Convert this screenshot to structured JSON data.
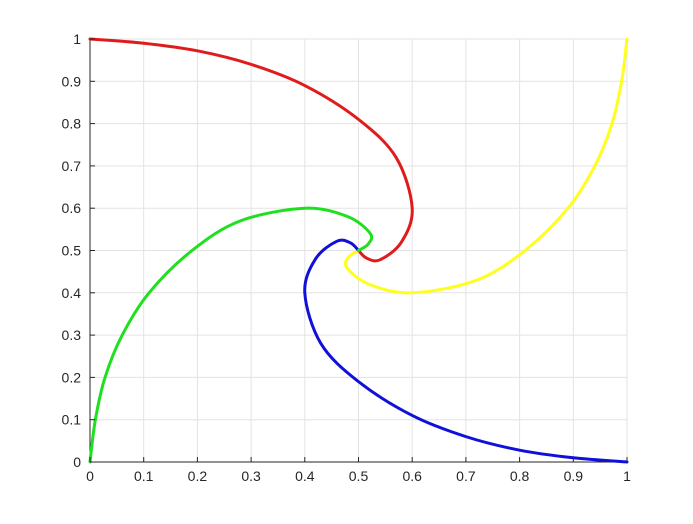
{
  "chart_data": {
    "type": "line",
    "title": "",
    "xlabel": "",
    "ylabel": "",
    "xlim": [
      0,
      1
    ],
    "ylim": [
      0,
      1
    ],
    "grid": true,
    "legend": "none",
    "xticks": [
      "0",
      "0.1",
      "0.2",
      "0.3",
      "0.4",
      "0.5",
      "0.6",
      "0.7",
      "0.8",
      "0.9",
      "1"
    ],
    "yticks": [
      "0",
      "0.1",
      "0.2",
      "0.3",
      "0.4",
      "0.5",
      "0.6",
      "0.7",
      "0.8",
      "0.9",
      "1"
    ],
    "series": [
      {
        "color": "#e01b1b",
        "points": [
          [
            0,
            1
          ],
          [
            0.1,
            0.99
          ],
          [
            0.2,
            0.972
          ],
          [
            0.3,
            0.94
          ],
          [
            0.4,
            0.89
          ],
          [
            0.5,
            0.81
          ],
          [
            0.57,
            0.72
          ],
          [
            0.6,
            0.6
          ],
          [
            0.58,
            0.52
          ],
          [
            0.54,
            0.478
          ],
          [
            0.515,
            0.482
          ],
          [
            0.5,
            0.5
          ]
        ]
      },
      {
        "color": "#ffff1f",
        "points": [
          [
            1,
            1
          ],
          [
            0.99,
            0.9
          ],
          [
            0.972,
            0.8
          ],
          [
            0.94,
            0.7
          ],
          [
            0.89,
            0.6
          ],
          [
            0.81,
            0.5
          ],
          [
            0.72,
            0.43
          ],
          [
            0.6,
            0.4
          ],
          [
            0.52,
            0.42
          ],
          [
            0.478,
            0.46
          ],
          [
            0.482,
            0.485
          ],
          [
            0.5,
            0.5
          ]
        ]
      },
      {
        "color": "#1010d8",
        "points": [
          [
            1,
            0
          ],
          [
            0.9,
            0.01
          ],
          [
            0.8,
            0.028
          ],
          [
            0.7,
            0.06
          ],
          [
            0.6,
            0.11
          ],
          [
            0.5,
            0.19
          ],
          [
            0.43,
            0.28
          ],
          [
            0.4,
            0.4
          ],
          [
            0.42,
            0.48
          ],
          [
            0.46,
            0.522
          ],
          [
            0.485,
            0.518
          ],
          [
            0.5,
            0.5
          ]
        ]
      },
      {
        "color": "#1fe01f",
        "points": [
          [
            0,
            0
          ],
          [
            0.01,
            0.1
          ],
          [
            0.028,
            0.2
          ],
          [
            0.06,
            0.3
          ],
          [
            0.11,
            0.4
          ],
          [
            0.19,
            0.5
          ],
          [
            0.28,
            0.57
          ],
          [
            0.4,
            0.6
          ],
          [
            0.48,
            0.58
          ],
          [
            0.522,
            0.54
          ],
          [
            0.518,
            0.515
          ],
          [
            0.5,
            0.5
          ]
        ]
      }
    ]
  }
}
